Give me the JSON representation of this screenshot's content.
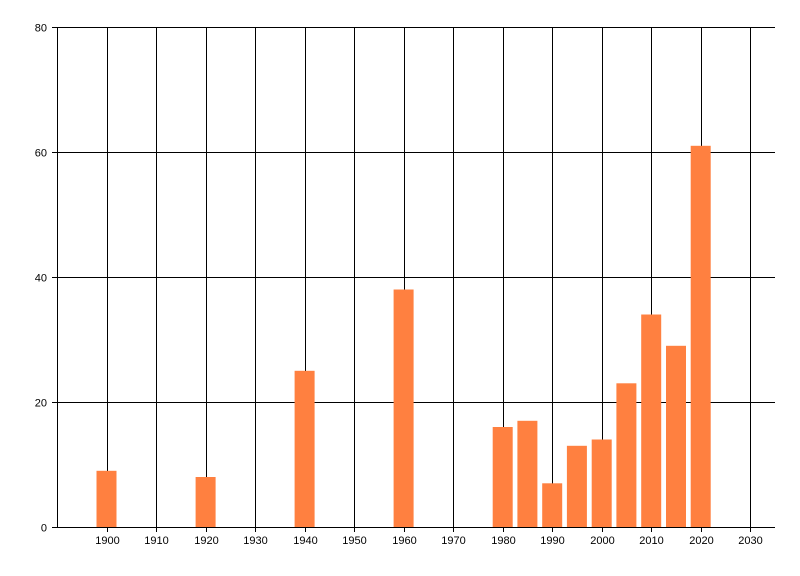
{
  "chart_data": {
    "type": "bar",
    "x": [
      1900,
      1920,
      1940,
      1960,
      1980,
      1985,
      1990,
      1995,
      2000,
      2005,
      2010,
      2015,
      2020
    ],
    "values": [
      9,
      8,
      25,
      38,
      16,
      17,
      7,
      13,
      14,
      23,
      34,
      29,
      61
    ],
    "xlim": [
      1890,
      2035
    ],
    "ylim": [
      0,
      80
    ],
    "xticks": [
      "1900",
      "1910",
      "1920",
      "1930",
      "1940",
      "1950",
      "1960",
      "1970",
      "1980",
      "1990",
      "2000",
      "2010",
      "2020",
      "2030"
    ],
    "yticks": [
      "0",
      "20",
      "40",
      "60",
      "80"
    ],
    "grid": true,
    "bar_color": "#ff8040",
    "title": "",
    "xlabel": "",
    "ylabel": ""
  }
}
